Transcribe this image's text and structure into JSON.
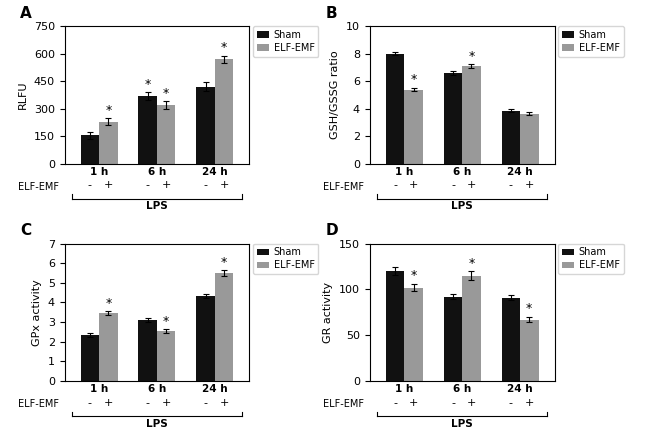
{
  "chart_data": [
    {
      "type": "bar",
      "title": "A",
      "ylabel": "RLFU",
      "categories": [
        "1 h",
        "6 h",
        "24 h"
      ],
      "series": [
        {
          "name": "Sham",
          "color": "#111111",
          "values": [
            155,
            370,
            420
          ],
          "errors": [
            20,
            20,
            25
          ]
        },
        {
          "name": "ELF-EMF",
          "color": "#999999",
          "values": [
            230,
            320,
            570
          ],
          "errors": [
            20,
            20,
            20
          ]
        }
      ],
      "ylim": [
        0,
        750
      ],
      "yticks": [
        0,
        150,
        300,
        450,
        600,
        750
      ],
      "legend": "upper right",
      "annotations": [
        {
          "text": "*",
          "series": "Sham",
          "category": "6 h"
        },
        {
          "text": "*",
          "series": "ELF-EMF",
          "category": "1 h"
        },
        {
          "text": "*",
          "series": "ELF-EMF",
          "category": "6 h"
        },
        {
          "text": "*",
          "series": "ELF-EMF",
          "category": "24 h"
        }
      ],
      "treatment_label": "ELF-EMF",
      "treatment_marks": [
        "-",
        "+"
      ],
      "bracket_label": "LPS"
    },
    {
      "type": "bar",
      "title": "B",
      "ylabel": "GSH/GSSG ratio",
      "categories": [
        "1 h",
        "6 h",
        "24 h"
      ],
      "series": [
        {
          "name": "Sham",
          "color": "#111111",
          "values": [
            8.0,
            6.6,
            3.85
          ],
          "errors": [
            0.12,
            0.12,
            0.12
          ]
        },
        {
          "name": "ELF-EMF",
          "color": "#999999",
          "values": [
            5.4,
            7.1,
            3.65
          ],
          "errors": [
            0.12,
            0.15,
            0.1
          ]
        }
      ],
      "ylim": [
        0,
        10
      ],
      "yticks": [
        0,
        2,
        4,
        6,
        8,
        10
      ],
      "legend": "upper right",
      "annotations": [
        {
          "text": "*",
          "series": "ELF-EMF",
          "category": "1 h"
        },
        {
          "text": "*",
          "series": "ELF-EMF",
          "category": "6 h"
        }
      ],
      "treatment_label": "ELF-EMF",
      "treatment_marks": [
        "-",
        "+"
      ],
      "bracket_label": "LPS"
    },
    {
      "type": "bar",
      "title": "C",
      "ylabel": "GPx activity",
      "categories": [
        "1 h",
        "6 h",
        "24 h"
      ],
      "series": [
        {
          "name": "Sham",
          "color": "#111111",
          "values": [
            2.35,
            3.1,
            4.35
          ],
          "errors": [
            0.1,
            0.1,
            0.1
          ]
        },
        {
          "name": "ELF-EMF",
          "color": "#999999",
          "values": [
            3.45,
            2.55,
            5.5
          ],
          "errors": [
            0.1,
            0.1,
            0.15
          ]
        }
      ],
      "ylim": [
        0,
        7
      ],
      "yticks": [
        0,
        1,
        2,
        3,
        4,
        5,
        6,
        7
      ],
      "legend": "upper right",
      "annotations": [
        {
          "text": "*",
          "series": "ELF-EMF",
          "category": "1 h"
        },
        {
          "text": "*",
          "series": "ELF-EMF",
          "category": "6 h"
        },
        {
          "text": "*",
          "series": "ELF-EMF",
          "category": "24 h"
        }
      ],
      "treatment_label": "ELF-EMF",
      "treatment_marks": [
        "-",
        "+"
      ],
      "bracket_label": "LPS"
    },
    {
      "type": "bar",
      "title": "D",
      "ylabel": "GR activity",
      "categories": [
        "1 h",
        "6 h",
        "24 h"
      ],
      "series": [
        {
          "name": "Sham",
          "color": "#111111",
          "values": [
            120,
            92,
            91
          ],
          "errors": [
            4,
            3,
            3
          ]
        },
        {
          "name": "ELF-EMF",
          "color": "#999999",
          "values": [
            102,
            115,
            67
          ],
          "errors": [
            4,
            5,
            3
          ]
        }
      ],
      "ylim": [
        0,
        150
      ],
      "yticks": [
        0,
        50,
        100,
        150
      ],
      "legend": "upper right",
      "annotations": [
        {
          "text": "*",
          "series": "ELF-EMF",
          "category": "1 h"
        },
        {
          "text": "*",
          "series": "ELF-EMF",
          "category": "6 h"
        },
        {
          "text": "*",
          "series": "ELF-EMF",
          "category": "24 h"
        }
      ],
      "treatment_label": "ELF-EMF",
      "treatment_marks": [
        "-",
        "+"
      ],
      "bracket_label": "LPS"
    }
  ]
}
